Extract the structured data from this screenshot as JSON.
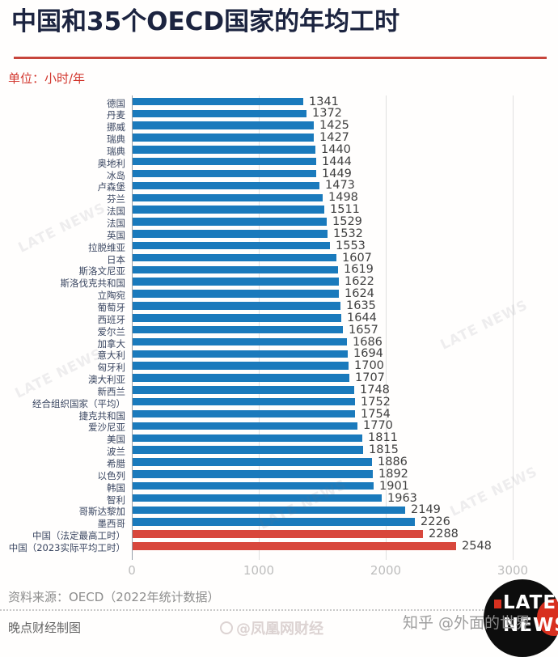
{
  "header": {
    "title": "中国和35个OECD国家的年均工时",
    "unit_label": "单位：小时/年"
  },
  "chart_data": {
    "type": "bar",
    "orientation": "horizontal",
    "title": "中国和35个OECD国家的年均工时",
    "xlabel": "",
    "ylabel": "",
    "unit": "小时/年",
    "xlim": [
      0,
      3000
    ],
    "x_ticks": [
      "0",
      "1000",
      "2000",
      "3000"
    ],
    "x_tick_values": [
      0,
      1000,
      2000,
      3000
    ],
    "grid": true,
    "bar_color": "#1a7abc",
    "highlight_color": "#d8473c",
    "rows": [
      {
        "label": "德国",
        "value": 1341
      },
      {
        "label": "丹麦",
        "value": 1372
      },
      {
        "label": "挪威",
        "value": 1425
      },
      {
        "label": "瑞典",
        "value": 1427
      },
      {
        "label": "瑞典",
        "value": 1440
      },
      {
        "label": "奥地利",
        "value": 1444
      },
      {
        "label": "冰岛",
        "value": 1449
      },
      {
        "label": "卢森堡",
        "value": 1473
      },
      {
        "label": "芬兰",
        "value": 1498
      },
      {
        "label": "法国",
        "value": 1511
      },
      {
        "label": "法国",
        "value": 1529
      },
      {
        "label": "英国",
        "value": 1532
      },
      {
        "label": "拉脱维亚",
        "value": 1553
      },
      {
        "label": "日本",
        "value": 1607
      },
      {
        "label": "斯洛文尼亚",
        "value": 1619
      },
      {
        "label": "斯洛伐克共和国",
        "value": 1622
      },
      {
        "label": "立陶宛",
        "value": 1624
      },
      {
        "label": "葡萄牙",
        "value": 1635
      },
      {
        "label": "西班牙",
        "value": 1644
      },
      {
        "label": "爱尔兰",
        "value": 1657
      },
      {
        "label": "加拿大",
        "value": 1686
      },
      {
        "label": "意大利",
        "value": 1694
      },
      {
        "label": "匈牙利",
        "value": 1700
      },
      {
        "label": "澳大利亚",
        "value": 1707
      },
      {
        "label": "新西兰",
        "value": 1748
      },
      {
        "label": "经合组织国家（平均）",
        "value": 1752
      },
      {
        "label": "捷克共和国",
        "value": 1754
      },
      {
        "label": "爱沙尼亚",
        "value": 1770
      },
      {
        "label": "美国",
        "value": 1811
      },
      {
        "label": "波兰",
        "value": 1815
      },
      {
        "label": "希腊",
        "value": 1886
      },
      {
        "label": "以色列",
        "value": 1892
      },
      {
        "label": "韩国",
        "value": 1901
      },
      {
        "label": "智利",
        "value": 1963
      },
      {
        "label": "哥斯达黎加",
        "value": 2149
      },
      {
        "label": "墨西哥",
        "value": 2226
      },
      {
        "label": "中国（法定最高工时）",
        "value": 2288,
        "highlight": true
      },
      {
        "label": "中国（2023实际平均工时）",
        "value": 2548,
        "highlight": true
      }
    ]
  },
  "footer": {
    "source": "资料来源：OECD（2022年统计数据）",
    "credit": "晚点财经制图"
  },
  "watermarks": {
    "diagonal": "LATE NEWS",
    "zhihu": "知乎 @外面的世界",
    "phoenix": "@凤凰网财经"
  },
  "logo": {
    "line1": "LATE",
    "line2": "NEWS"
  }
}
